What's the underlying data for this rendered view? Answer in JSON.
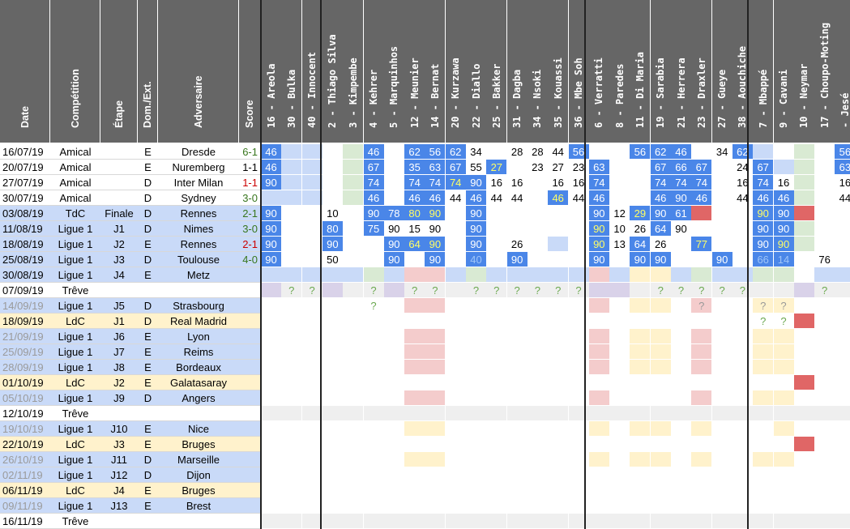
{
  "columns": {
    "date": "Date",
    "competition": "Compétition",
    "etape": "Étape",
    "domext": "Dom./Ext.",
    "adversaire": "Adversaire",
    "score": "Score"
  },
  "players": [
    "16 - Areola",
    "30 - Bulka",
    "40 - Innocent",
    "2 - Thiago Silva",
    "3 - Kimpembe",
    "4 - Kehrer",
    "5 - Marquinhos",
    "12 - Meunier",
    "14 - Bernat",
    "20 - Kurzawa",
    "22 - Diallo",
    "25 - Bakker",
    "31 - Dagba",
    "34 - Nsoki",
    "35 - Kouassi",
    "36 - Mbe Soh",
    "6 - Verratti",
    "8 - Paredes",
    "11 - Di Maria",
    "19 - Sarabia",
    "21 - Herrera",
    "23 - Draxler",
    "27 - Gueye",
    "38 - Aouchiche",
    "7 - Mbappé",
    "9 - Cavani",
    "10 - Neymar",
    "17 - Choupo-Moting",
    "- Jesé"
  ],
  "colors": {
    "blue": "#4a86e8",
    "lightblue": "#c9daf8",
    "green": "#d9ead3",
    "purple": "#d9d2e9",
    "red": "#e06666",
    "pink": "#f4cccc",
    "yellow": "#fff2cc",
    "grey": "#efefef",
    "header": "#666666",
    "ldc_row": "#fff2cc",
    "l1_row": "#c9daf8"
  },
  "matches": [
    {
      "date": "16/07/19",
      "comp": "Amical",
      "etape": "",
      "dom": "E",
      "adv": "Dresde",
      "score": "6-1",
      "score_color": "#38761d",
      "played": true,
      "kind": "amical",
      "cells": [
        "B:46",
        "L",
        "L",
        "",
        "G",
        "B:46",
        "",
        "B:62",
        "B:56",
        "B:62",
        "W:34",
        "",
        "W:28",
        "W:28",
        "W:44",
        "B:56",
        "",
        "",
        "B:56",
        "B:62",
        "B:46",
        "",
        "W:34",
        "B:62",
        "L",
        "",
        "G",
        "",
        "B:56"
      ]
    },
    {
      "date": "20/07/19",
      "comp": "Amical",
      "etape": "",
      "dom": "E",
      "adv": "Nuremberg",
      "score": "1-1",
      "score_color": "#000000",
      "played": true,
      "kind": "amical",
      "cells": [
        "B:46",
        "L",
        "L",
        "",
        "G",
        "B:67",
        "",
        "B:35",
        "B:63",
        "B:67",
        "W:55",
        "Y:27",
        "",
        "W:23",
        "W:27",
        "W:23",
        "B:63",
        "",
        "",
        "B:67",
        "B:66",
        "B:67",
        "",
        "W:24",
        "B:67",
        "L",
        "G",
        "",
        "B:63"
      ]
    },
    {
      "date": "27/07/19",
      "comp": "Amical",
      "etape": "",
      "dom": "D",
      "adv": "Inter Milan",
      "score": "1-1",
      "score_color": "#cc0000",
      "played": true,
      "kind": "amical",
      "cells": [
        "B:90",
        "L",
        "L",
        "",
        "G",
        "B:74",
        "",
        "B:74",
        "B:74",
        "Y:74",
        "B:90",
        "W:16",
        "W:16",
        "",
        "W:16",
        "W:16",
        "B:74",
        "",
        "",
        "B:74",
        "B:74",
        "B:74",
        "",
        "W:16",
        "B:74",
        "W:16",
        "G",
        "",
        "W:16"
      ]
    },
    {
      "date": "30/07/19",
      "comp": "Amical",
      "etape": "",
      "dom": "D",
      "adv": "Sydney",
      "score": "3-0",
      "score_color": "#38761d",
      "played": true,
      "kind": "amical",
      "cells": [
        "L",
        "L",
        "L",
        "",
        "G",
        "B:46",
        "",
        "B:46",
        "B:46",
        "W:44",
        "B:46",
        "W:44",
        "W:44",
        "",
        "Y:46",
        "W:44",
        "B:46",
        "",
        "",
        "B:46",
        "B:90",
        "B:46",
        "",
        "W:44",
        "B:46",
        "B:46",
        "G",
        "",
        "W:44"
      ]
    },
    {
      "date": "03/08/19",
      "comp": "TdC",
      "etape": "Finale",
      "dom": "D",
      "adv": "Rennes",
      "score": "2-1",
      "score_color": "#38761d",
      "played": true,
      "kind": "tdc",
      "cells": [
        "B:90",
        "",
        "",
        "W:10",
        "",
        "B:90",
        "B:78",
        "Y:80",
        "Y:90",
        "",
        "B:90",
        "",
        "",
        "",
        "",
        "",
        "B:90",
        "W:12",
        "Y:29",
        "B:90",
        "B:61",
        "R",
        "",
        "",
        "Y:90",
        "B:90",
        "R",
        "",
        ""
      ]
    },
    {
      "date": "11/08/19",
      "comp": "Ligue 1",
      "etape": "J1",
      "dom": "D",
      "adv": "Nimes",
      "score": "3-0",
      "score_color": "#38761d",
      "played": true,
      "kind": "l1",
      "cells": [
        "B:90",
        "",
        "",
        "B:80",
        "",
        "B:75",
        "W:90",
        "W:15",
        "W:90",
        "",
        "B:90",
        "",
        "",
        "",
        "",
        "",
        "Y:90",
        "W:10",
        "W:26",
        "B:64",
        "W:90",
        "",
        "",
        "",
        "B:90",
        "B:90",
        "G",
        "",
        ""
      ]
    },
    {
      "date": "18/08/19",
      "comp": "Ligue 1",
      "etape": "J2",
      "dom": "E",
      "adv": "Rennes",
      "score": "2-1",
      "score_color": "#cc0000",
      "played": true,
      "kind": "l1",
      "cells": [
        "B:90",
        "",
        "",
        "B:90",
        "",
        "",
        "B:90",
        "Y:64",
        "Y:90",
        "",
        "B:90",
        "",
        "W:26",
        "",
        "L",
        "",
        "Y:90",
        "W:13",
        "B:64",
        "W:26",
        "",
        "Y:77",
        "",
        "",
        "B:90",
        "Y:90",
        "G",
        "",
        ""
      ]
    },
    {
      "date": "25/08/19",
      "comp": "Ligue 1",
      "etape": "J3",
      "dom": "D",
      "adv": "Toulouse",
      "score": "4-0",
      "score_color": "#38761d",
      "played": true,
      "kind": "l1",
      "cells": [
        "B:90",
        "",
        "",
        "W:50",
        "",
        "",
        "B:90",
        "",
        "B:90",
        "",
        "C:40",
        "",
        "B:90",
        "",
        "",
        "",
        "B:90",
        "",
        "B:90",
        "B:90",
        "",
        "",
        "B:90",
        "",
        "C:66",
        "C:14",
        "",
        "W:76",
        ""
      ]
    },
    {
      "date": "30/08/19",
      "comp": "Ligue 1",
      "etape": "J4",
      "dom": "E",
      "adv": "Metz",
      "score": "",
      "score_color": "#000000",
      "played": false,
      "kind": "l1",
      "cells": [
        "L",
        "L",
        "L",
        "L",
        "L",
        "G",
        "L",
        "P",
        "P",
        "L",
        "G",
        "L",
        "L",
        "L",
        "L",
        "L",
        "P",
        "L",
        "Y",
        "Y",
        "L",
        "G",
        "L",
        "L",
        "G",
        "G",
        "",
        "L",
        "L"
      ]
    },
    {
      "date": "07/09/19",
      "comp": "Trêve",
      "etape": "",
      "dom": "",
      "adv": "",
      "score": "",
      "score_color": "#000000",
      "played": false,
      "kind": "treve",
      "cells": [
        "V",
        "Q:?",
        "Q:?",
        "V",
        "",
        "Q:?",
        "V",
        "Q:?",
        "Q:?",
        "",
        "Q:?",
        "Q:?",
        "Q:?",
        "Q:?",
        "Q:?",
        "Q:?",
        "V",
        "V",
        "",
        "Q:?",
        "Q:?",
        "Q:?",
        "Q:?",
        "Q:?",
        "",
        "",
        "V",
        "Q:?",
        ""
      ]
    },
    {
      "date": "14/09/19",
      "comp": "Ligue 1",
      "etape": "J5",
      "dom": "D",
      "adv": "Strasbourg",
      "score": "",
      "score_color": "#000000",
      "played": false,
      "kind": "l1f",
      "cells": [
        "",
        "",
        "",
        "",
        "",
        "Q:?",
        "",
        "P",
        "P",
        "",
        "",
        "",
        "",
        "",
        "",
        "",
        "P",
        "",
        "Y",
        "Y",
        "",
        "P:?",
        "",
        "",
        "Y:?",
        "Y:?",
        "",
        "",
        ""
      ]
    },
    {
      "date": "18/09/19",
      "comp": "LdC",
      "etape": "J1",
      "dom": "D",
      "adv": "Real Madrid",
      "score": "",
      "score_color": "#000000",
      "played": false,
      "kind": "ldc",
      "cells": [
        "",
        "",
        "",
        "",
        "",
        "",
        "",
        "",
        "",
        "",
        "",
        "",
        "",
        "",
        "",
        "",
        "",
        "",
        "",
        "",
        "",
        "",
        "",
        "",
        "Q:?",
        "Q:?",
        "R",
        "",
        ""
      ]
    },
    {
      "date": "21/09/19",
      "comp": "Ligue 1",
      "etape": "J6",
      "dom": "E",
      "adv": "Lyon",
      "score": "",
      "score_color": "#000000",
      "played": false,
      "kind": "l1f",
      "cells": [
        "",
        "",
        "",
        "",
        "",
        "",
        "",
        "P",
        "P",
        "",
        "",
        "",
        "",
        "",
        "",
        "",
        "P",
        "",
        "Y",
        "Y",
        "",
        "P",
        "",
        "",
        "Y",
        "Y",
        "",
        "",
        ""
      ]
    },
    {
      "date": "25/09/19",
      "comp": "Ligue 1",
      "etape": "J7",
      "dom": "E",
      "adv": "Reims",
      "score": "",
      "score_color": "#000000",
      "played": false,
      "kind": "l1f",
      "cells": [
        "",
        "",
        "",
        "",
        "",
        "",
        "",
        "P",
        "P",
        "",
        "",
        "",
        "",
        "",
        "",
        "",
        "P",
        "",
        "Y",
        "Y",
        "",
        "P",
        "",
        "",
        "Y",
        "Y",
        "",
        "",
        ""
      ]
    },
    {
      "date": "28/09/19",
      "comp": "Ligue 1",
      "etape": "J8",
      "dom": "E",
      "adv": "Bordeaux",
      "score": "",
      "score_color": "#000000",
      "played": false,
      "kind": "l1f",
      "cells": [
        "",
        "",
        "",
        "",
        "",
        "",
        "",
        "P",
        "P",
        "",
        "",
        "",
        "",
        "",
        "",
        "",
        "P",
        "",
        "Y",
        "Y",
        "",
        "P",
        "",
        "",
        "Y",
        "Y",
        "",
        "",
        ""
      ]
    },
    {
      "date": "01/10/19",
      "comp": "LdC",
      "etape": "J2",
      "dom": "E",
      "adv": "Galatasaray",
      "score": "",
      "score_color": "#000000",
      "played": false,
      "kind": "ldc",
      "cells": [
        "",
        "",
        "",
        "",
        "",
        "",
        "",
        "",
        "",
        "",
        "",
        "",
        "",
        "",
        "",
        "",
        "",
        "",
        "",
        "",
        "",
        "",
        "",
        "",
        "",
        "",
        "R",
        "",
        ""
      ]
    },
    {
      "date": "05/10/19",
      "comp": "Ligue 1",
      "etape": "J9",
      "dom": "D",
      "adv": "Angers",
      "score": "",
      "score_color": "#000000",
      "played": false,
      "kind": "l1f",
      "cells": [
        "",
        "",
        "",
        "",
        "",
        "",
        "",
        "P",
        "P",
        "",
        "",
        "",
        "",
        "",
        "",
        "",
        "P",
        "",
        "",
        "",
        "",
        "P",
        "",
        "",
        "Y",
        "Y",
        "",
        "",
        ""
      ]
    },
    {
      "date": "12/10/19",
      "comp": "Trêve",
      "etape": "",
      "dom": "",
      "adv": "",
      "score": "",
      "score_color": "#000000",
      "played": false,
      "kind": "treve",
      "cells": [
        "",
        "",
        "",
        "",
        "",
        "",
        "",
        "",
        "",
        "",
        "",
        "",
        "",
        "",
        "",
        "",
        "",
        "",
        "",
        "",
        "",
        "",
        "",
        "",
        "",
        "",
        "",
        "",
        ""
      ]
    },
    {
      "date": "19/10/19",
      "comp": "Ligue 1",
      "etape": "J10",
      "dom": "E",
      "adv": "Nice",
      "score": "",
      "score_color": "#000000",
      "played": false,
      "kind": "l1f",
      "cells": [
        "",
        "",
        "",
        "",
        "",
        "",
        "",
        "Y",
        "Y",
        "",
        "",
        "",
        "",
        "",
        "",
        "",
        "Y",
        "",
        "Y",
        "Y",
        "",
        "Y",
        "",
        "",
        "",
        "Y",
        "",
        "",
        ""
      ]
    },
    {
      "date": "22/10/19",
      "comp": "LdC",
      "etape": "J3",
      "dom": "E",
      "adv": "Bruges",
      "score": "",
      "score_color": "#000000",
      "played": false,
      "kind": "ldc",
      "cells": [
        "",
        "",
        "",
        "",
        "",
        "",
        "",
        "",
        "",
        "",
        "",
        "",
        "",
        "",
        "",
        "",
        "",
        "",
        "",
        "",
        "",
        "",
        "",
        "",
        "",
        "",
        "R",
        "",
        ""
      ]
    },
    {
      "date": "26/10/19",
      "comp": "Ligue 1",
      "etape": "J11",
      "dom": "D",
      "adv": "Marseille",
      "score": "",
      "score_color": "#000000",
      "played": false,
      "kind": "l1f",
      "cells": [
        "",
        "",
        "",
        "",
        "",
        "",
        "",
        "Y",
        "Y",
        "",
        "",
        "",
        "",
        "",
        "",
        "",
        "Y",
        "",
        "Y",
        "Y",
        "",
        "Y",
        "",
        "",
        "Y",
        "Y",
        "",
        "",
        ""
      ]
    },
    {
      "date": "02/11/19",
      "comp": "Ligue 1",
      "etape": "J12",
      "dom": "D",
      "adv": "Dijon",
      "score": "",
      "score_color": "#000000",
      "played": false,
      "kind": "l1f",
      "cells": [
        "",
        "",
        "",
        "",
        "",
        "",
        "",
        "",
        "",
        "",
        "",
        "",
        "",
        "",
        "",
        "",
        "",
        "",
        "",
        "",
        "",
        "",
        "",
        "",
        "",
        "",
        "",
        "",
        ""
      ]
    },
    {
      "date": "06/11/19",
      "comp": "LdC",
      "etape": "J4",
      "dom": "E",
      "adv": "Bruges",
      "score": "",
      "score_color": "#000000",
      "played": false,
      "kind": "ldc",
      "cells": [
        "",
        "",
        "",
        "",
        "",
        "",
        "",
        "",
        "",
        "",
        "",
        "",
        "",
        "",
        "",
        "",
        "",
        "",
        "",
        "",
        "",
        "",
        "",
        "",
        "",
        "",
        "",
        "",
        ""
      ]
    },
    {
      "date": "09/11/19",
      "comp": "Ligue 1",
      "etape": "J13",
      "dom": "E",
      "adv": "Brest",
      "score": "",
      "score_color": "#000000",
      "played": false,
      "kind": "l1f",
      "cells": [
        "",
        "",
        "",
        "",
        "",
        "",
        "",
        "",
        "",
        "",
        "",
        "",
        "",
        "",
        "",
        "",
        "",
        "",
        "",
        "",
        "",
        "",
        "",
        "",
        "",
        "",
        "",
        "",
        ""
      ]
    },
    {
      "date": "16/11/19",
      "comp": "Trêve",
      "etape": "",
      "dom": "",
      "adv": "",
      "score": "",
      "score_color": "#000000",
      "played": false,
      "kind": "treve",
      "cells": [
        "",
        "",
        "",
        "",
        "",
        "",
        "",
        "",
        "",
        "",
        "",
        "",
        "",
        "",
        "",
        "",
        "",
        "",
        "",
        "",
        "",
        "",
        "",
        "",
        "",
        "",
        "",
        "",
        ""
      ]
    }
  ]
}
